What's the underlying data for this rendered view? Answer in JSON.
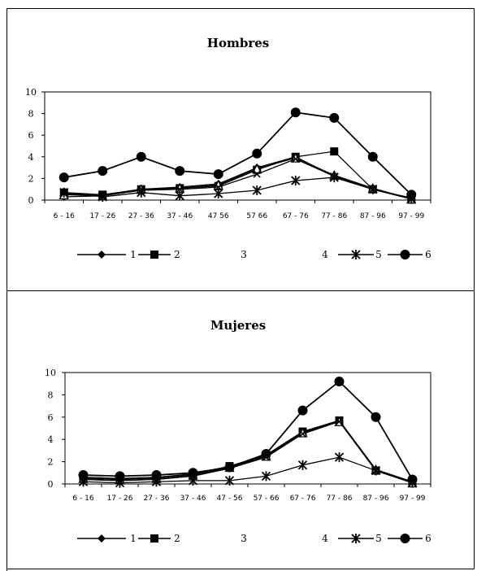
{
  "chart_data": [
    {
      "type": "line",
      "title": "Hombres",
      "categories": [
        "6-16",
        "17-26",
        "27-36",
        "37-46",
        "47-56",
        "57-66",
        "67-76",
        "77-86",
        "87-96",
        "97-99"
      ],
      "category_labels": [
        "6 - 16",
        "17 - 26",
        "27 - 36",
        "37 - 46",
        "47  56",
        "57  66",
        "67 - 76",
        "77 - 86",
        "87 - 96",
        "97 - 99"
      ],
      "ylim": [
        0,
        10
      ],
      "yticks": [
        "0",
        "2",
        "4",
        "6",
        "8",
        "10"
      ],
      "legend_position": "bottom",
      "series": [
        {
          "name": "1",
          "marker": "diamond",
          "values": [
            0.3,
            0.4,
            1.0,
            1.2,
            1.5,
            3.0,
            4.0,
            2.2,
            1.0,
            0.2
          ]
        },
        {
          "name": "2",
          "marker": "square",
          "values": [
            0.7,
            0.5,
            1.0,
            1.1,
            1.3,
            2.8,
            4.0,
            4.5,
            1.0,
            0.1
          ]
        },
        {
          "name": "3",
          "marker": "triangle",
          "values": [
            0.5,
            0.4,
            1.0,
            1.1,
            1.4,
            2.9,
            3.9,
            2.3,
            1.1,
            0.1
          ]
        },
        {
          "name": "4",
          "marker": "x",
          "values": [
            0.6,
            0.4,
            0.9,
            1.0,
            1.2,
            2.4,
            3.8,
            2.2,
            1.0,
            0.1
          ]
        },
        {
          "name": "5",
          "marker": "star",
          "values": [
            0.7,
            0.3,
            0.7,
            0.4,
            0.6,
            0.9,
            1.8,
            2.1,
            1.0,
            0.1
          ]
        },
        {
          "name": "6",
          "marker": "circle",
          "values": [
            2.1,
            2.7,
            4.0,
            2.7,
            2.4,
            4.3,
            8.1,
            7.6,
            4.0,
            0.5
          ]
        }
      ]
    },
    {
      "type": "line",
      "title": "Mujeres",
      "categories": [
        "6-16",
        "17-26",
        "27-36",
        "37-46",
        "47-56",
        "57-66",
        "67-76",
        "77-86",
        "87-96",
        "97-99"
      ],
      "category_labels": [
        "6 - 16",
        "17 - 26",
        "27 - 36",
        "37 - 46",
        "47 - 56",
        "57 - 66",
        "67 - 76",
        "77 - 86",
        "87 - 96",
        "97 - 99"
      ],
      "ylim": [
        0,
        10
      ],
      "yticks": [
        "0",
        "2",
        "4",
        "6",
        "8",
        "10"
      ],
      "legend_position": "bottom",
      "series": [
        {
          "name": "1",
          "marker": "diamond",
          "values": [
            0.5,
            0.4,
            0.5,
            0.8,
            1.5,
            2.5,
            4.6,
            5.7,
            1.3,
            0.2
          ]
        },
        {
          "name": "2",
          "marker": "square",
          "values": [
            0.6,
            0.5,
            0.6,
            0.9,
            1.6,
            2.6,
            4.7,
            5.7,
            1.2,
            0.1
          ]
        },
        {
          "name": "3",
          "marker": "triangle",
          "values": [
            0.5,
            0.4,
            0.5,
            0.8,
            1.5,
            2.5,
            4.6,
            5.6,
            1.3,
            0.1
          ]
        },
        {
          "name": "4",
          "marker": "x",
          "values": [
            0.4,
            0.3,
            0.4,
            0.7,
            1.4,
            2.4,
            4.5,
            5.6,
            1.2,
            0.1
          ]
        },
        {
          "name": "5",
          "marker": "star",
          "values": [
            0.2,
            0.1,
            0.2,
            0.3,
            0.3,
            0.7,
            1.7,
            2.4,
            1.2,
            0.1
          ]
        },
        {
          "name": "6",
          "marker": "circle",
          "values": [
            0.8,
            0.7,
            0.8,
            1.0,
            1.5,
            2.7,
            6.6,
            9.2,
            6.0,
            0.4
          ]
        }
      ]
    }
  ]
}
